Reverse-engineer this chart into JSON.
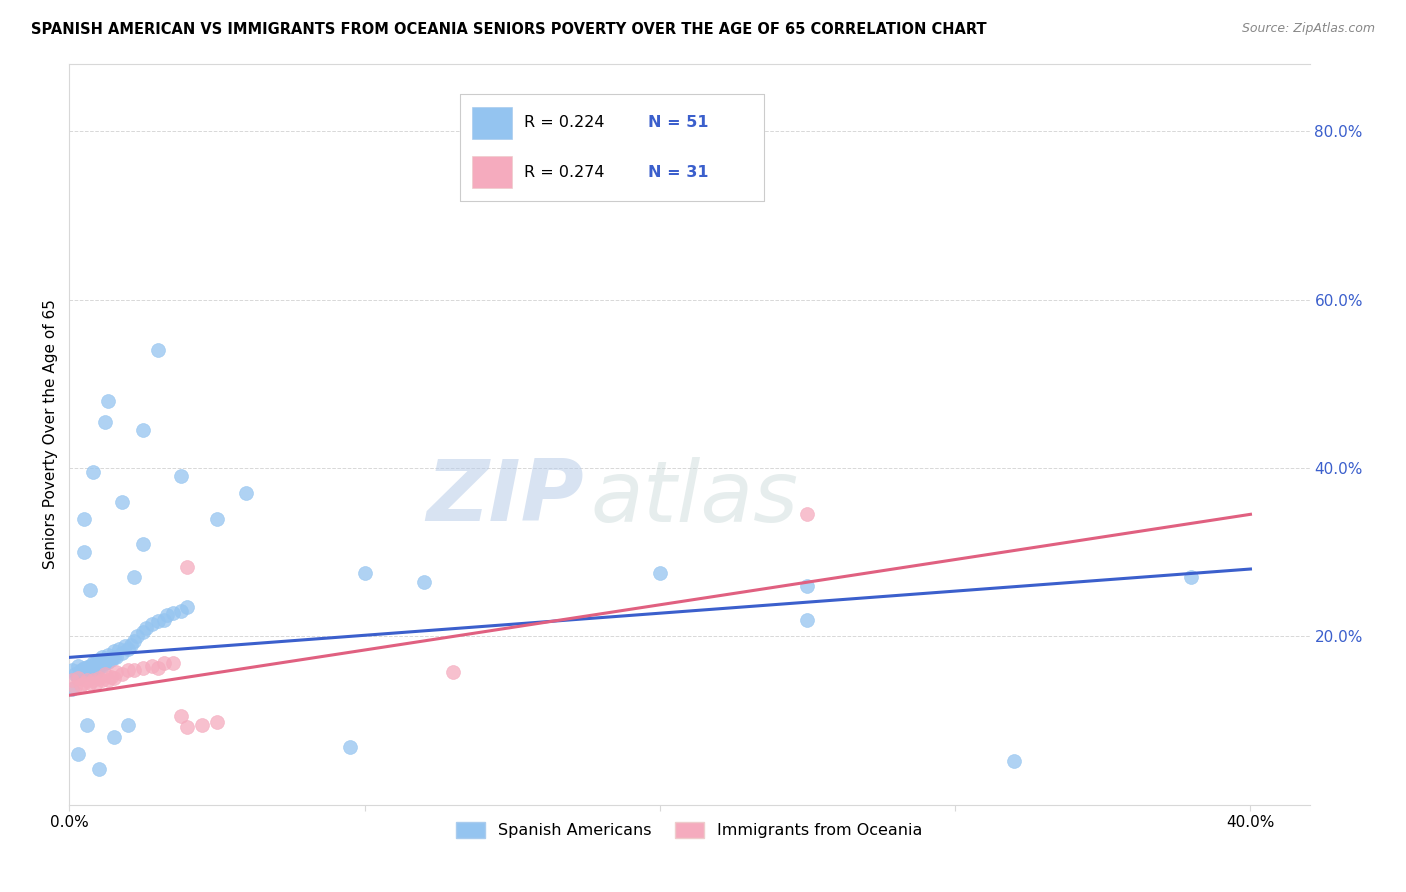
{
  "title": "SPANISH AMERICAN VS IMMIGRANTS FROM OCEANIA SENIORS POVERTY OVER THE AGE OF 65 CORRELATION CHART",
  "source": "Source: ZipAtlas.com",
  "ylabel": "Seniors Poverty Over the Age of 65",
  "xlim": [
    0.0,
    0.42
  ],
  "ylim": [
    0.0,
    0.88
  ],
  "right_yticks": [
    0.0,
    0.2,
    0.4,
    0.6,
    0.8
  ],
  "right_yticklabels": [
    "",
    "20.0%",
    "40.0%",
    "60.0%",
    "80.0%"
  ],
  "xticks": [
    0.0,
    0.1,
    0.2,
    0.3,
    0.4
  ],
  "xticklabels": [
    "0.0%",
    "",
    "",
    "",
    "40.0%"
  ],
  "blue_color": "#94C4F0",
  "pink_color": "#F5ABBE",
  "blue_line_color": "#3B5FCC",
  "pink_line_color": "#E06080",
  "blue_scatter_x": [
    0.001,
    0.002,
    0.003,
    0.003,
    0.004,
    0.004,
    0.005,
    0.005,
    0.006,
    0.006,
    0.007,
    0.007,
    0.008,
    0.008,
    0.009,
    0.009,
    0.01,
    0.01,
    0.011,
    0.011,
    0.012,
    0.013,
    0.013,
    0.014,
    0.015,
    0.015,
    0.016,
    0.017,
    0.018,
    0.019,
    0.02,
    0.021,
    0.022,
    0.023,
    0.025,
    0.026,
    0.028,
    0.03,
    0.032,
    0.033,
    0.035,
    0.038,
    0.04,
    0.005,
    0.008,
    0.012,
    0.018,
    0.095,
    0.25,
    0.32,
    0.005
  ],
  "blue_scatter_y": [
    0.16,
    0.155,
    0.15,
    0.165,
    0.155,
    0.16,
    0.158,
    0.162,
    0.155,
    0.163,
    0.158,
    0.165,
    0.16,
    0.168,
    0.158,
    0.17,
    0.163,
    0.172,
    0.165,
    0.175,
    0.168,
    0.17,
    0.178,
    0.172,
    0.175,
    0.182,
    0.176,
    0.185,
    0.18,
    0.188,
    0.185,
    0.19,
    0.195,
    0.2,
    0.205,
    0.21,
    0.215,
    0.218,
    0.22,
    0.225,
    0.228,
    0.23,
    0.235,
    0.3,
    0.395,
    0.455,
    0.36,
    0.068,
    0.22,
    0.052,
    0.34
  ],
  "blue_scatter_x2": [
    0.001,
    0.003,
    0.006,
    0.01,
    0.015,
    0.02,
    0.025,
    0.03,
    0.025,
    0.05,
    0.1,
    0.2,
    0.007,
    0.013,
    0.022,
    0.038,
    0.06,
    0.12,
    0.25,
    0.38
  ],
  "blue_scatter_y2": [
    0.138,
    0.06,
    0.095,
    0.042,
    0.08,
    0.095,
    0.31,
    0.54,
    0.445,
    0.34,
    0.275,
    0.275,
    0.255,
    0.48,
    0.27,
    0.39,
    0.37,
    0.265,
    0.26,
    0.27
  ],
  "pink_scatter_x": [
    0.001,
    0.002,
    0.003,
    0.004,
    0.005,
    0.006,
    0.007,
    0.008,
    0.009,
    0.01,
    0.011,
    0.012,
    0.013,
    0.014,
    0.015,
    0.016,
    0.018,
    0.02,
    0.022,
    0.025,
    0.028,
    0.03,
    0.032,
    0.035,
    0.038,
    0.04,
    0.045,
    0.05,
    0.13,
    0.25,
    0.04
  ],
  "pink_scatter_y": [
    0.148,
    0.14,
    0.15,
    0.142,
    0.145,
    0.148,
    0.145,
    0.148,
    0.145,
    0.15,
    0.148,
    0.155,
    0.148,
    0.152,
    0.15,
    0.158,
    0.155,
    0.16,
    0.16,
    0.162,
    0.165,
    0.162,
    0.168,
    0.168,
    0.105,
    0.092,
    0.095,
    0.098,
    0.158,
    0.345,
    0.282
  ],
  "watermark_zip": "ZIP",
  "watermark_atlas": "atlas",
  "background_color": "#ffffff",
  "grid_color": "#d8d8d8",
  "legend_text_color": "#3B5FCC",
  "legend_R1": "R = 0.224",
  "legend_N1": "N = 51",
  "legend_R2": "R = 0.274",
  "legend_N2": "N = 31"
}
